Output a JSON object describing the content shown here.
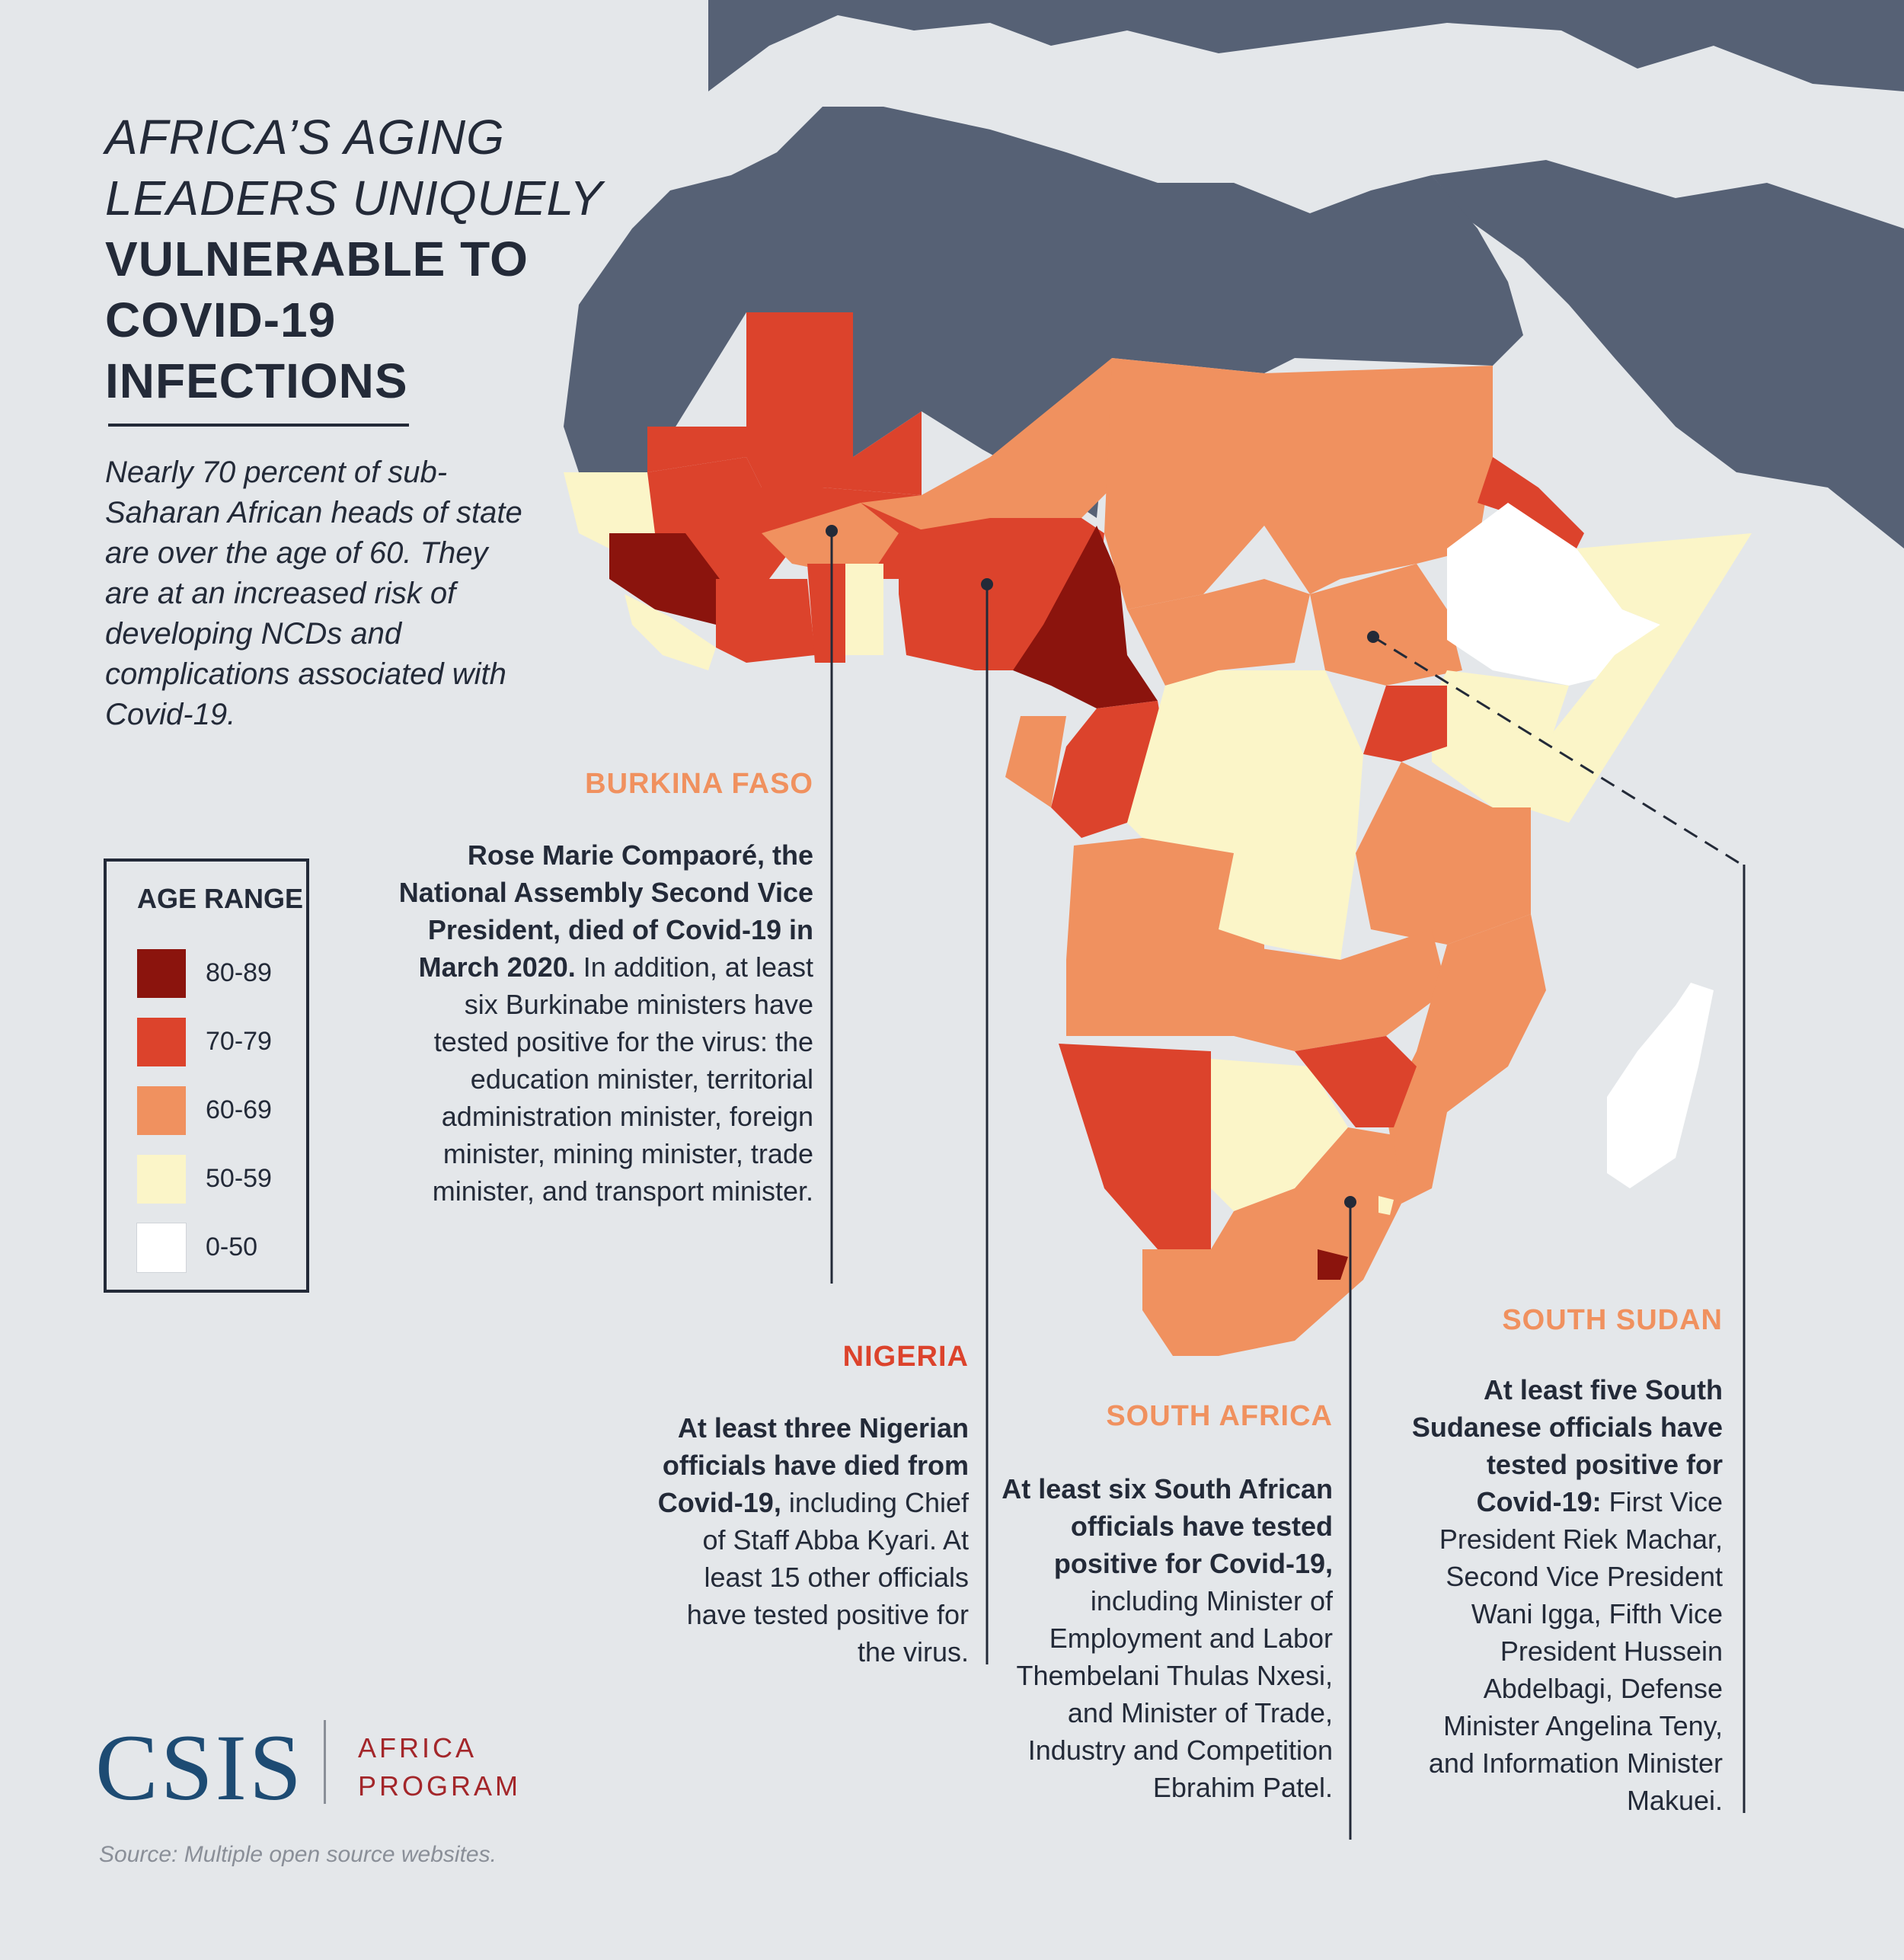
{
  "title": {
    "line1": "AFRICA’S AGING",
    "line2": "LEADERS UNIQUELY",
    "line3": "VULNERABLE TO",
    "line4": "COVID-19",
    "line5": "INFECTIONS"
  },
  "intro": "Nearly 70 percent of sub-Saharan African heads of state are over the age of 60. They are at an increased risk of developing NCDs and complications associated with Covid-19.",
  "legend": {
    "title": "AGE RANGE",
    "items": [
      {
        "label": "80-89",
        "color": "#8b140d"
      },
      {
        "label": "70-79",
        "color": "#dc432c"
      },
      {
        "label": "60-69",
        "color": "#f0915f"
      },
      {
        "label": "50-59",
        "color": "#fbf5c8"
      },
      {
        "label": "0-50",
        "color": "#ffffff"
      }
    ]
  },
  "callouts": {
    "burkina_faso": {
      "heading": "BURKINA FASO",
      "bold": "Rose Marie Compaoré, the National Assembly Second Vice President, died of Covid-19 in March 2020.",
      "text": " In addition, at least six Burkinabe ministers have tested positive for the virus: the education minister, territorial administration minister, foreign minister, mining minister, trade minister, and transport minister."
    },
    "nigeria": {
      "heading": "NIGERIA",
      "bold": "At least three Nigerian officials have died from Covid-19,",
      "text": " including Chief of Staff Abba Kyari. At least 15 other officials have tested positive for the virus."
    },
    "south_africa": {
      "heading": "SOUTH AFRICA",
      "bold": "At least six South African officials have tested positive for Covid-19,",
      "text": " including Minister of Employment and Labor Thembelani Thulas Nxesi, and Minister of Trade, Industry and Competition Ebrahim Patel."
    },
    "south_sudan": {
      "heading": "SOUTH SUDAN",
      "bold": "At least five South Sudanese officials have tested positive for Covid-19:",
      "text": " First Vice President Riek Machar, Second Vice President Wani Igga, Fifth Vice President Hussein Abdelbagi, Defense Minister Angelina Teny, and Information Minister Makuei."
    }
  },
  "colors": {
    "background": "#e4e7ea",
    "land_non_ssa": "#566175",
    "heading_orange": "#f0915f",
    "heading_red": "#dc432c",
    "text_dark": "#232a38"
  },
  "logo": {
    "name": "CSIS",
    "program_line1": "AFRICA",
    "program_line2": "PROGRAM"
  },
  "source": "Source: Multiple open source websites."
}
